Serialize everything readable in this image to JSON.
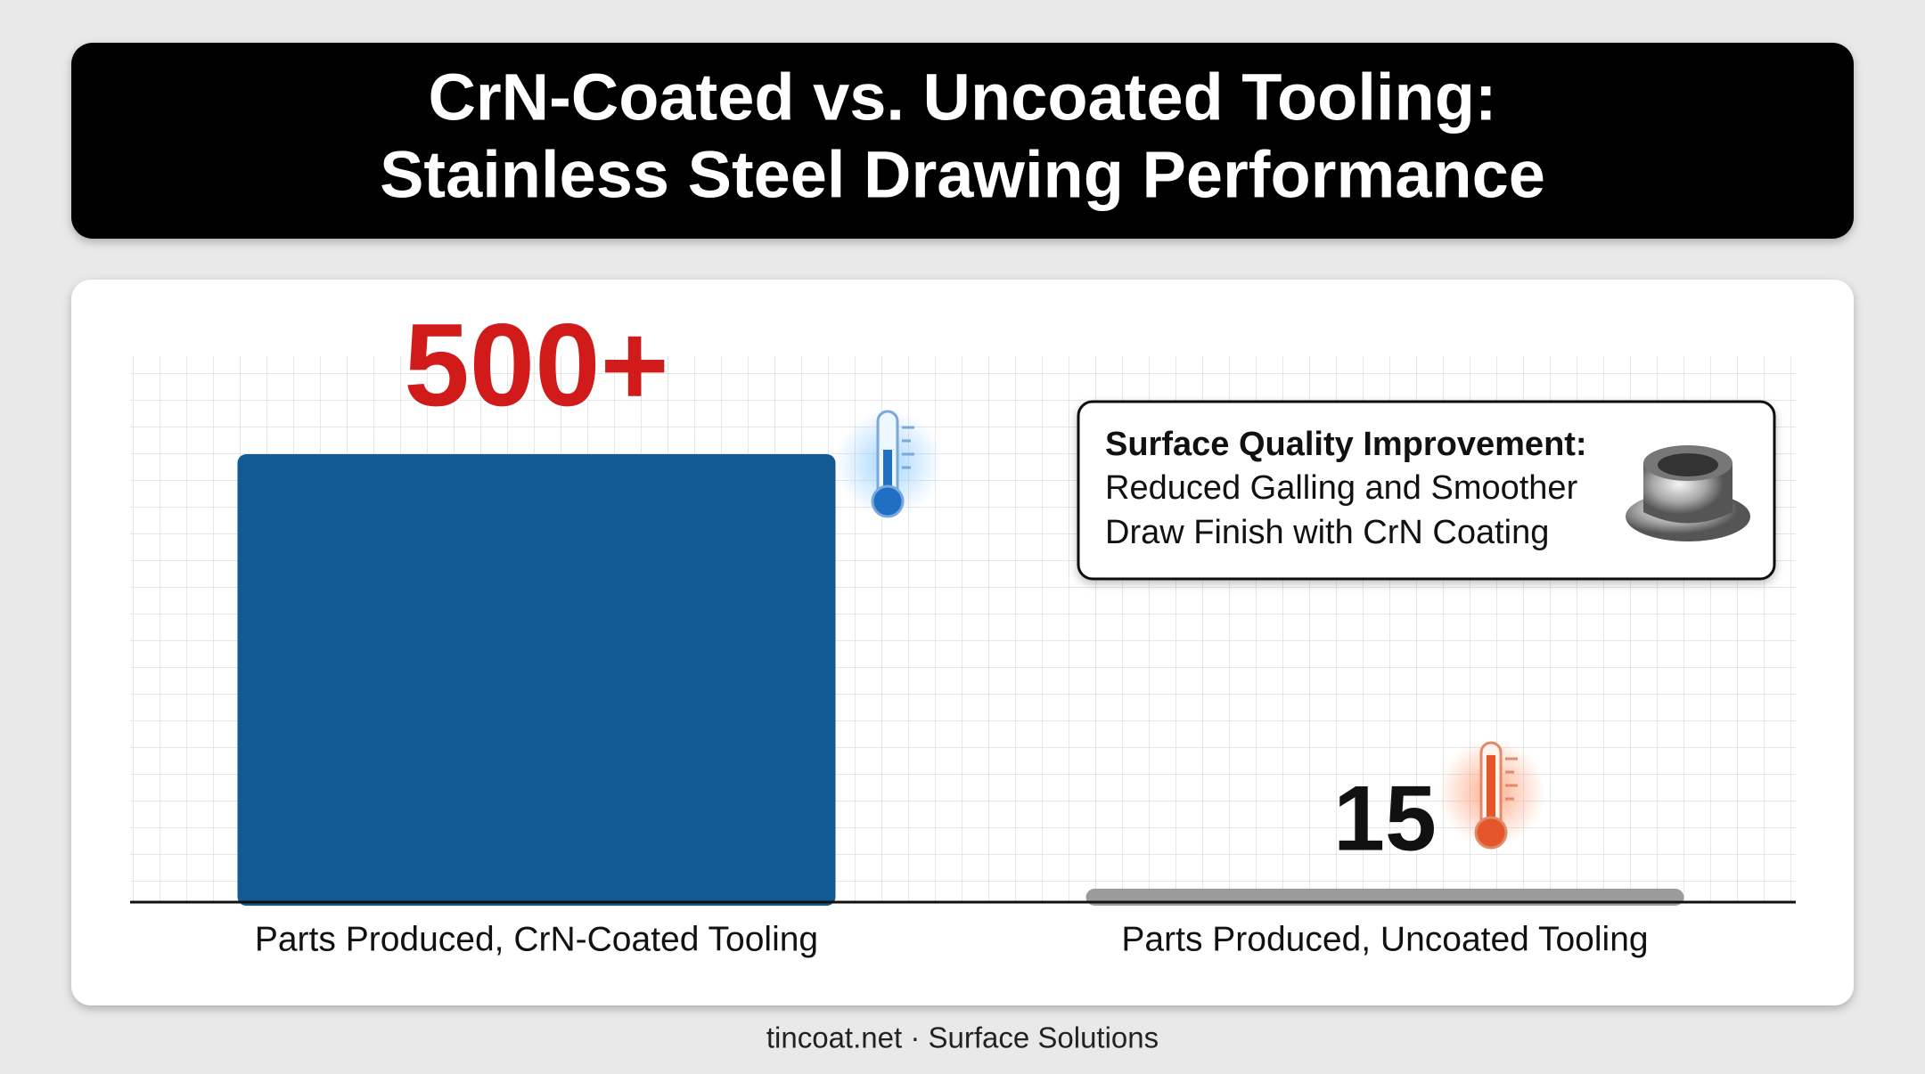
{
  "chart_data": {
    "type": "bar",
    "title": [
      "CrN-Coated vs. Uncoated Tooling:",
      "Stainless Steel Drawing Performance"
    ],
    "categories": [
      "Parts Produced, CrN-Coated Tooling",
      "Parts Produced, Uncoated Tooling"
    ],
    "values": [
      500,
      15
    ],
    "value_labels": [
      "500+",
      "15"
    ],
    "colors": [
      "#135a93",
      "#9b9b9b"
    ],
    "value_label_colors": [
      "#d11a1a",
      "#111111"
    ],
    "grid": true,
    "annotation": {
      "title": "Surface Quality Improvement:",
      "lines": [
        "Reduced Galling and Smoother",
        "Draw Finish with CrN Coating"
      ]
    },
    "footer": "tincoat.net · Surface Solutions"
  }
}
